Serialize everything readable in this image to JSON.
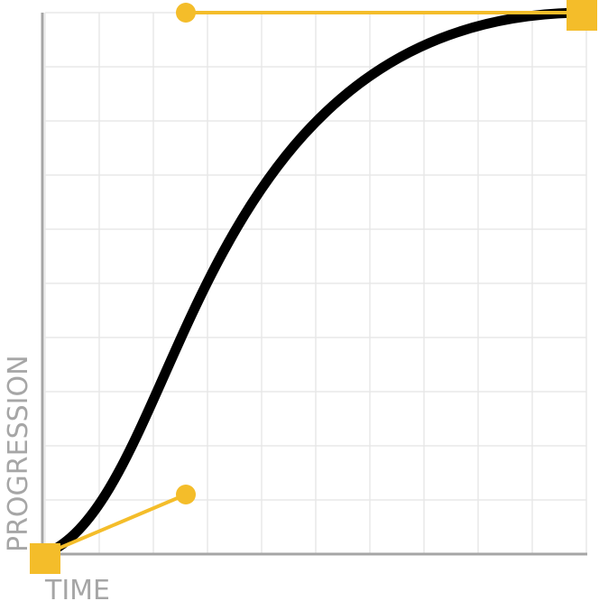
{
  "axes": {
    "x_label": "TIME",
    "y_label": "PROGRESSION"
  },
  "curve": {
    "type": "cubic-bezier",
    "control_point_1": [
      0.26,
      0.11
    ],
    "control_point_2": [
      0.26,
      1.0
    ]
  },
  "colors": {
    "grid": "#e8e8e8",
    "axis": "#a6a6a6",
    "curve": "#000000",
    "handle": "#f4bd2a"
  },
  "grid": {
    "divisions": 10,
    "visible": true
  }
}
